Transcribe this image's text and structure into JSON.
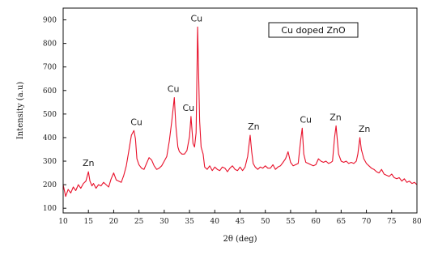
{
  "chart_data": {
    "type": "line",
    "xlabel": "2θ (deg)",
    "ylabel": "Intensity (a.u)",
    "xlim": [
      10,
      80
    ],
    "ylim": [
      80,
      950
    ],
    "xticks": [
      10,
      15,
      20,
      25,
      30,
      35,
      40,
      45,
      50,
      55,
      60,
      65,
      70,
      75,
      80
    ],
    "yticks": [
      100,
      200,
      300,
      400,
      500,
      600,
      700,
      800,
      900
    ],
    "line_color": "#e8102a",
    "legend": {
      "label": "Cu doped ZnO",
      "placement": "top-right"
    },
    "series": [
      {
        "x": [
          10,
          10.5,
          11,
          11.5,
          12,
          12.5,
          13,
          13.5,
          14,
          14.5,
          15,
          15.3,
          15.7,
          16,
          16.5,
          17,
          17.5,
          18,
          18.5,
          19,
          19.5,
          20,
          20.5,
          21,
          21.5,
          22,
          22.5,
          23,
          23.5,
          24,
          24.3,
          24.6,
          25,
          25.5,
          26,
          26.5,
          27,
          27.5,
          28,
          28.5,
          29,
          29.5,
          30,
          30.5,
          31,
          31.5,
          32,
          32.3,
          32.7,
          33,
          33.5,
          34,
          34.5,
          35,
          35.3,
          35.7,
          36,
          36.3,
          36.6,
          37,
          37.3,
          37.7,
          38,
          38.5,
          39,
          39.5,
          40,
          40.5,
          41,
          41.5,
          42,
          42.5,
          43,
          43.5,
          44,
          44.5,
          45,
          45.5,
          46,
          46.5,
          47,
          47.3,
          47.6,
          48,
          48.5,
          49,
          49.5,
          50,
          50.5,
          51,
          51.5,
          52,
          52.5,
          53,
          53.5,
          54,
          54.5,
          55,
          55.5,
          56,
          56.5,
          57,
          57.3,
          57.6,
          58,
          58.5,
          59,
          59.5,
          60,
          60.5,
          61,
          61.5,
          62,
          62.5,
          63,
          63.3,
          63.7,
          64,
          64.5,
          65,
          65.5,
          66,
          66.5,
          67,
          67.5,
          68,
          68.3,
          68.7,
          69,
          69.5,
          70,
          70.5,
          71,
          71.5,
          72,
          72.5,
          73,
          73.5,
          74,
          74.5,
          75,
          75.5,
          76,
          76.5,
          77,
          77.5,
          78,
          78.5,
          79,
          79.5,
          80
        ],
        "y": [
          200,
          150,
          180,
          165,
          190,
          175,
          200,
          185,
          205,
          215,
          255,
          215,
          195,
          205,
          185,
          200,
          195,
          210,
          200,
          190,
          225,
          250,
          220,
          215,
          210,
          240,
          280,
          345,
          410,
          430,
          395,
          310,
          285,
          270,
          265,
          290,
          315,
          305,
          280,
          265,
          270,
          280,
          300,
          320,
          385,
          470,
          570,
          450,
          360,
          340,
          330,
          330,
          345,
          405,
          490,
          375,
          360,
          420,
          870,
          470,
          360,
          330,
          275,
          265,
          280,
          260,
          275,
          265,
          260,
          275,
          270,
          255,
          270,
          280,
          265,
          260,
          275,
          260,
          275,
          320,
          410,
          340,
          290,
          275,
          265,
          275,
          270,
          280,
          270,
          270,
          285,
          265,
          275,
          280,
          295,
          310,
          340,
          295,
          280,
          285,
          290,
          390,
          440,
          330,
          295,
          290,
          285,
          280,
          285,
          310,
          300,
          295,
          300,
          290,
          295,
          300,
          400,
          450,
          330,
          300,
          295,
          300,
          290,
          295,
          290,
          300,
          330,
          400,
          350,
          310,
          290,
          280,
          270,
          265,
          255,
          250,
          265,
          245,
          240,
          235,
          245,
          230,
          225,
          230,
          215,
          225,
          210,
          215,
          205,
          210,
          200
        ]
      }
    ],
    "annotations": [
      {
        "text": "Zn",
        "x": 15.0,
        "y": 265
      },
      {
        "text": "Cu",
        "x": 24.5,
        "y": 440
      },
      {
        "text": "Cu",
        "x": 31.8,
        "y": 580
      },
      {
        "text": "Cu",
        "x": 34.8,
        "y": 500
      },
      {
        "text": "Cu",
        "x": 36.4,
        "y": 880
      },
      {
        "text": "Zn",
        "x": 47.7,
        "y": 420
      },
      {
        "text": "Cu",
        "x": 58.0,
        "y": 450
      },
      {
        "text": "Zn",
        "x": 63.9,
        "y": 460
      },
      {
        "text": "Zn",
        "x": 69.6,
        "y": 410
      }
    ]
  }
}
